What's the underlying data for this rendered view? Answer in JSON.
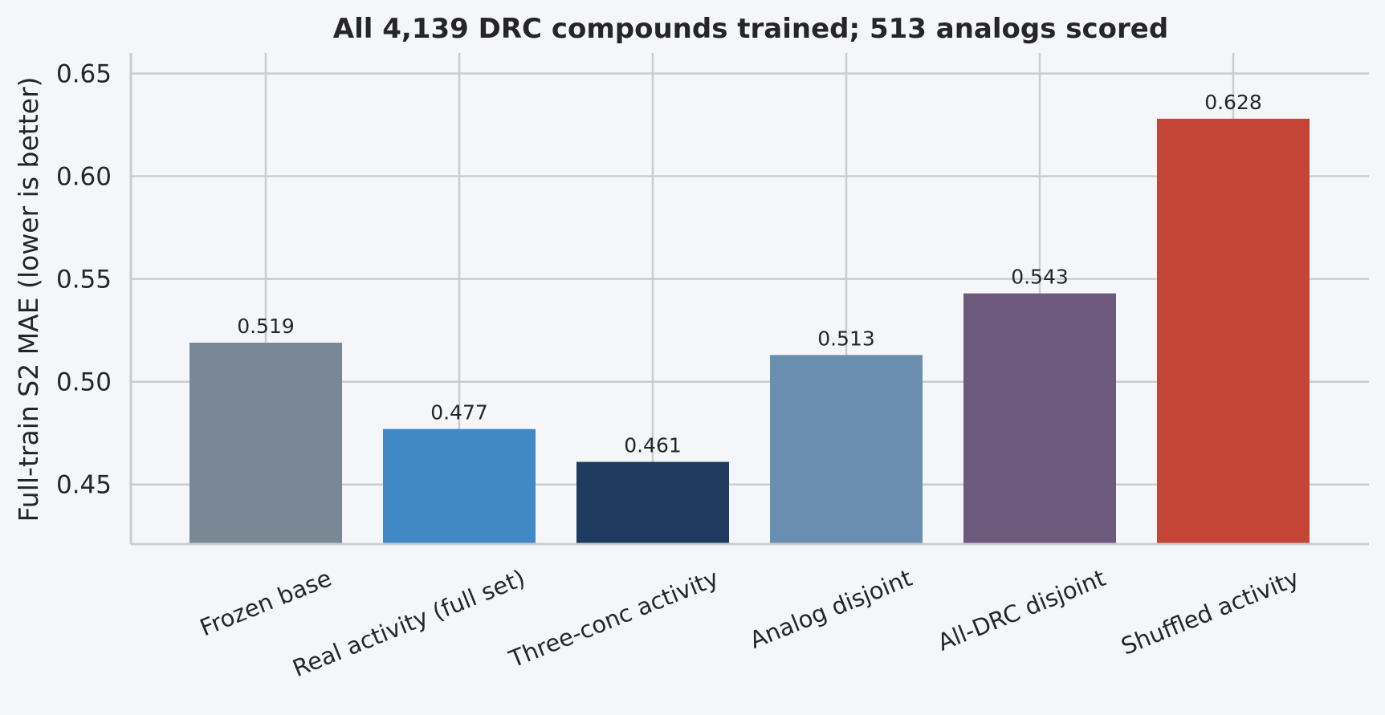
{
  "chart_data": {
    "type": "bar",
    "title": "All 4,139 DRC compounds trained; 513 analogs scored",
    "xlabel": "",
    "ylabel": "Full-train S2 MAE (lower is better)",
    "categories": [
      "Frozen base",
      "Real activity (full set)",
      "Three-conc activity",
      "Analog disjoint",
      "All-DRC disjoint",
      "Shuffled activity"
    ],
    "values": [
      0.519,
      0.477,
      0.461,
      0.513,
      0.543,
      0.628
    ],
    "value_labels": [
      "0.519",
      "0.477",
      "0.461",
      "0.513",
      "0.543",
      "0.628"
    ],
    "colors": [
      "#7a8896",
      "#4189c6",
      "#1f3a5f",
      "#6a8eb0",
      "#6d5a7c",
      "#c44536"
    ],
    "ylim": [
      0.421,
      0.66
    ],
    "yticks": [
      0.45,
      0.5,
      0.55,
      0.6,
      0.65
    ],
    "ytick_labels": [
      "0.45",
      "0.50",
      "0.55",
      "0.60",
      "0.65"
    ],
    "grid": true,
    "legend": "none"
  }
}
